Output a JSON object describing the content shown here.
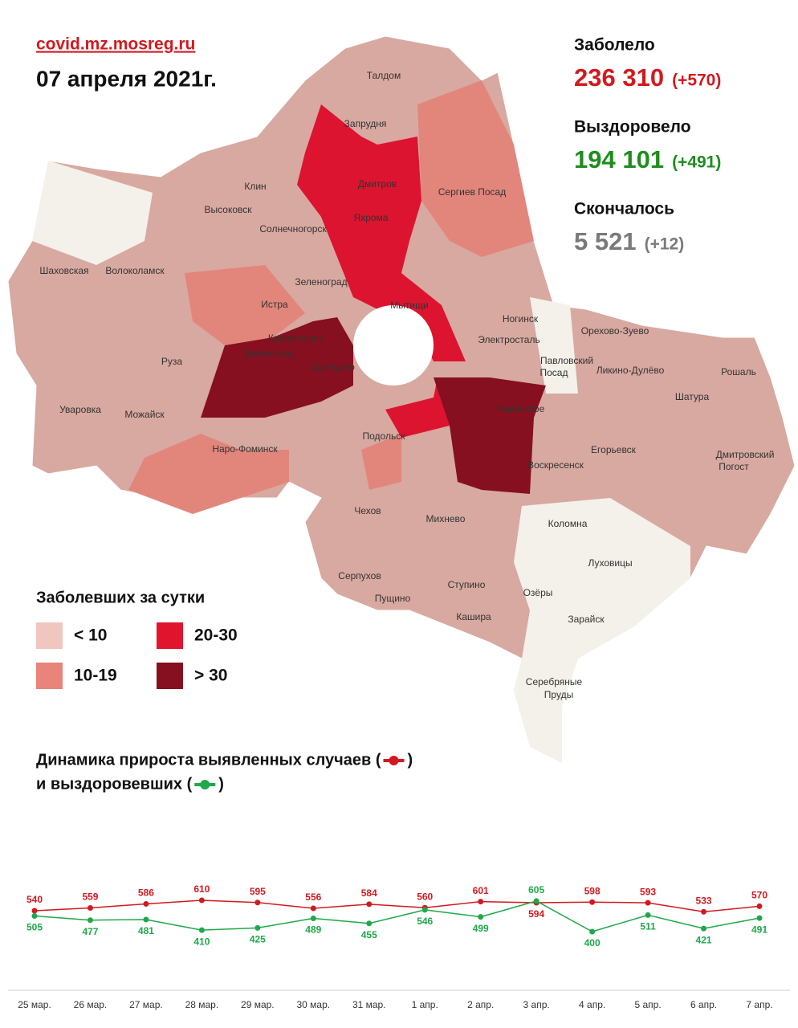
{
  "header": {
    "site": "covid.mz.mosreg.ru",
    "date": "07 апреля 2021г."
  },
  "stats": [
    {
      "label": "Заболело",
      "value": "236 310",
      "delta": "(+570)",
      "color": "#d11a1f"
    },
    {
      "label": "Выздоровело",
      "value": "194 101",
      "delta": "(+491)",
      "color": "#1f8c1f"
    },
    {
      "label": "Скончалось",
      "value": "5 521",
      "delta": "(+12)",
      "color": "#7a7a7a"
    }
  ],
  "legend": {
    "title": "Заболевших за сутки",
    "items": [
      {
        "label": "< 10",
        "color": "#f0c6c0"
      },
      {
        "label": "10-19",
        "color": "#e8847a"
      },
      {
        "label": "20-30",
        "color": "#e0142c"
      },
      {
        "label": "> 30",
        "color": "#861020"
      }
    ]
  },
  "map": {
    "labels": [
      "Талдом",
      "Запрудня",
      "Клин",
      "Дмитров",
      "Сергиев Посад",
      "Высоковск",
      "Яхрома",
      "Солнечногорск",
      "Шаховская",
      "Волоколамск",
      "Зеленоград",
      "Истра",
      "Мытищи",
      "Ногинск",
      "Орехово-Зуево",
      "Электросталь",
      "Красногорск",
      "Звенигород",
      "Павловский",
      "Посад",
      "Ликино-Дулёво",
      "Одинцово",
      "Рошаль",
      "Руза",
      "Шатура",
      "Раменское",
      "Уваровка",
      "Можайск",
      "Подольск",
      "Наро-Фоминск",
      "Егорьевск",
      "Воскресенск",
      "Дмитровский",
      "Погост",
      "Чехов",
      "Михнево",
      "Коломна",
      "Луховицы",
      "Серпухов",
      "Ступино",
      "Озёры",
      "Пущино",
      "Кашира",
      "Зарайск",
      "Серебряные",
      "Пруды"
    ]
  },
  "chart_data": {
    "type": "line",
    "title_parts": [
      [
        "Динамика прироста выявленных случаев (",
        ")"
      ],
      [
        "и выздоровевших (",
        ")"
      ]
    ],
    "categories": [
      "25 мар.",
      "26 мар.",
      "27 мар.",
      "28 мар.",
      "29 мар.",
      "30 мар.",
      "31 мар.",
      "1 апр.",
      "2 апр.",
      "3 апр.",
      "4 апр.",
      "5 апр.",
      "6 апр.",
      "7 апр."
    ],
    "series": [
      {
        "color": "#d11a1f",
        "values": [
          540,
          559,
          586,
          610,
          595,
          556,
          584,
          560,
          601,
          594,
          598,
          593,
          533,
          570
        ]
      },
      {
        "color": "#1fa84a",
        "values": [
          505,
          477,
          481,
          410,
          425,
          489,
          455,
          546,
          499,
          605,
          400,
          511,
          421,
          491
        ]
      }
    ]
  }
}
